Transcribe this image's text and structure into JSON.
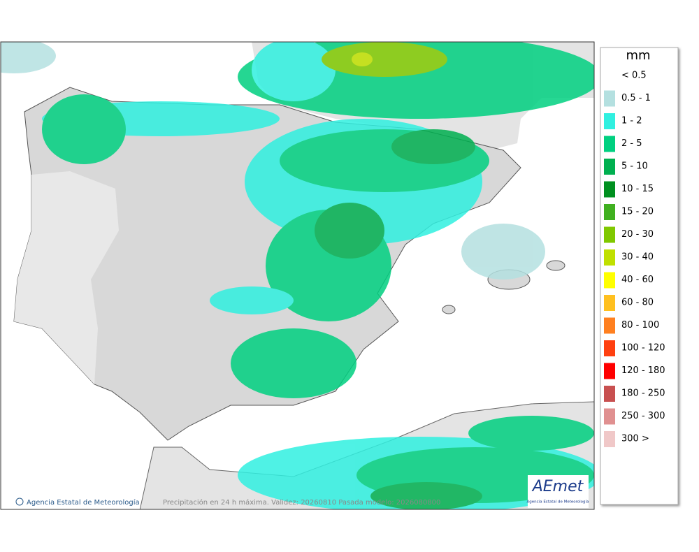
{
  "legend": {
    "title": "mm",
    "items": [
      {
        "label": "< 0.5"
      },
      {
        "label": "0.5 - 1",
        "color": "#b4e0e0"
      },
      {
        "label": "1 - 2",
        "color": "#30f0e0"
      },
      {
        "label": "2 - 5",
        "color": "#00d080"
      },
      {
        "label": "5 - 10",
        "color": "#00b050"
      },
      {
        "label": "10 - 15",
        "color": "#009020"
      },
      {
        "label": "15 - 20",
        "color": "#40b020"
      },
      {
        "label": "20 - 30",
        "color": "#80c800"
      },
      {
        "label": "30 - 40",
        "color": "#c0e000"
      },
      {
        "label": "40 - 60",
        "color": "#ffff00"
      },
      {
        "label": "60 - 80",
        "color": "#ffc020"
      },
      {
        "label": "80 - 100",
        "color": "#ff8020"
      },
      {
        "label": "100 - 120",
        "color": "#ff4010"
      },
      {
        "label": "120 - 180",
        "color": "#ff0000"
      },
      {
        "label": "180 - 250",
        "color": "#c85050"
      },
      {
        "label": "250 - 300",
        "color": "#e09090"
      },
      {
        "label": "300 >",
        "color": "#f0c8c8"
      }
    ]
  },
  "footer": {
    "credit": "Agencia Estatal de Meteorología",
    "caption": "Precipitación en 24 h máxima. Validez: 20260810 Pasada modelo: 2026080800"
  },
  "logo": {
    "name": "AEmet",
    "subtitle": "Agencia Estatal de Meteorología"
  }
}
